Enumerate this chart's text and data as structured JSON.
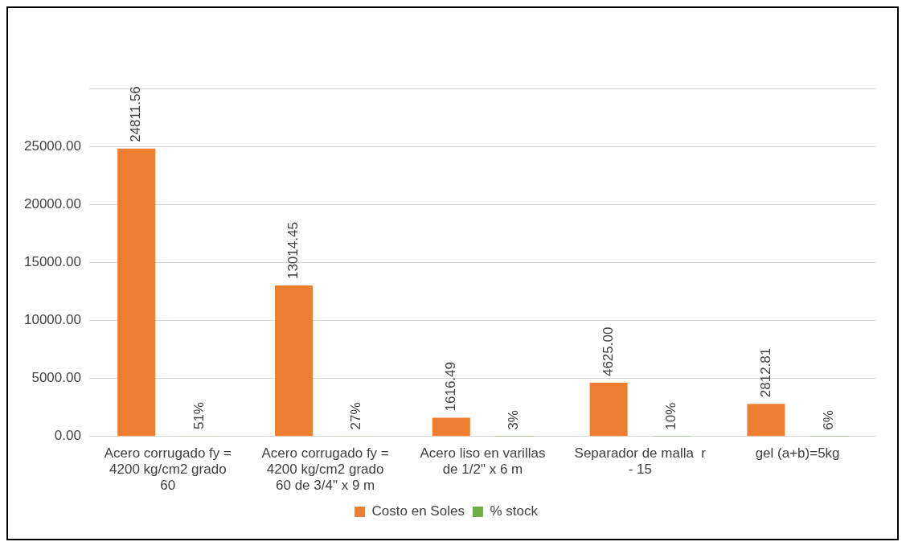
{
  "chart_data": {
    "type": "bar",
    "categories": [
      "Acero corrugado fy = 4200 kg/cm2 grado 60",
      "Acero corrugado fy = 4200 kg/cm2 grado 60 de 3/4\" x 9 m",
      "Acero liso en varillas de 1/2\" x 6 m",
      "Separador de malla  r - 15",
      "gel (a+b)=5kg"
    ],
    "series": [
      {
        "name": "Costo en Soles",
        "color": "#ed7d31",
        "values": [
          24811.56,
          13014.45,
          1616.49,
          4625.0,
          2812.81
        ],
        "value_labels": [
          "24811.56",
          "13014.45",
          "1616.49",
          "4625.00",
          "2812.81"
        ]
      },
      {
        "name": "% stock",
        "color": "#70ad47",
        "values": [
          51,
          27,
          3,
          10,
          6
        ],
        "value_labels": [
          "51%",
          "27%",
          "3%",
          "10%",
          "6%"
        ]
      }
    ],
    "ylim": [
      0,
      30000
    ],
    "yticks": [
      {
        "value": 0,
        "label": "0.00"
      },
      {
        "value": 5000,
        "label": "5000.00"
      },
      {
        "value": 10000,
        "label": "10000.00"
      },
      {
        "value": 15000,
        "label": "15000.00"
      },
      {
        "value": 20000,
        "label": "20000.00"
      },
      {
        "value": 25000,
        "label": "25000.00"
      },
      {
        "value": 30000,
        "label": null
      }
    ],
    "grid": "y",
    "legend": "bottom"
  }
}
